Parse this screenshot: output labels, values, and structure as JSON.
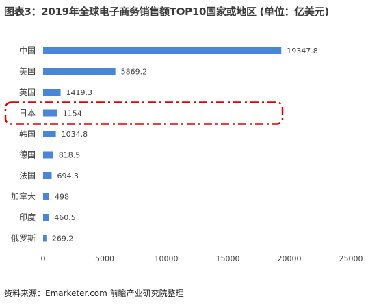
{
  "title": "图表3：2019年全球电子商务销售额TOP10国家或地区 (单位：亿美元)",
  "source": "资料来源：Emarketer.com 前瞻产业研究院整理",
  "colors": {
    "bar": "#4a86d8",
    "highlight": "#e00000",
    "text": "#404040"
  },
  "chart_data": {
    "type": "bar",
    "orientation": "horizontal",
    "title": "图表3：2019年全球电子商务销售额TOP10国家或地区 (单位：亿美元)",
    "categories": [
      "中国",
      "美国",
      "英国",
      "日本",
      "韩国",
      "德国",
      "法国",
      "加拿大",
      "印度",
      "俄罗斯"
    ],
    "values": [
      19347.8,
      5869.2,
      1419.3,
      1154,
      1034.8,
      818.5,
      694.3,
      498,
      460.5,
      269.2
    ],
    "value_labels": [
      "19347.8",
      "5869.2",
      "1419.3",
      "1154",
      "1034.8",
      "818.5",
      "694.3",
      "498",
      "460.5",
      "269.2"
    ],
    "xlim": [
      0,
      25000
    ],
    "xticks": [
      0,
      5000,
      10000,
      15000,
      20000,
      25000
    ],
    "highlighted_category": "日本",
    "grid": false,
    "legend": "none"
  }
}
